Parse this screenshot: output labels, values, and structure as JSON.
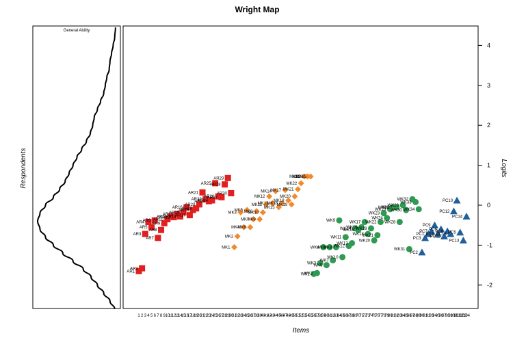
{
  "chart_data": {
    "type": "scatter",
    "title": "Wright Map",
    "xlabel": "Items",
    "ylabel": "Logits",
    "left_ylabel": "Respondents",
    "density_label": "General Ability",
    "ylim": [
      -2.6,
      4.45
    ],
    "yticks": [
      -2,
      -1,
      0,
      1,
      2,
      3,
      4
    ],
    "colors": {
      "AR": "#e02020",
      "MK": "#f08a2c",
      "WK": "#2e9a52",
      "PC": "#1f5f9c"
    },
    "density_profile": [
      [
        -2.6,
        0.02
      ],
      [
        -2.4,
        0.08
      ],
      [
        -2.2,
        0.16
      ],
      [
        -2.0,
        0.24
      ],
      [
        -1.8,
        0.32
      ],
      [
        -1.6,
        0.42
      ],
      [
        -1.4,
        0.55
      ],
      [
        -1.2,
        0.68
      ],
      [
        -1.0,
        0.8
      ],
      [
        -0.8,
        0.9
      ],
      [
        -0.6,
        0.97
      ],
      [
        -0.4,
        1.0
      ],
      [
        -0.2,
        0.97
      ],
      [
        0.0,
        0.9
      ],
      [
        0.2,
        0.8
      ],
      [
        0.4,
        0.72
      ],
      [
        0.6,
        0.65
      ],
      [
        0.8,
        0.6
      ],
      [
        1.0,
        0.55
      ],
      [
        1.2,
        0.5
      ],
      [
        1.4,
        0.44
      ],
      [
        1.6,
        0.38
      ],
      [
        1.8,
        0.33
      ],
      [
        2.0,
        0.3
      ],
      [
        2.2,
        0.28
      ],
      [
        2.4,
        0.24
      ],
      [
        2.6,
        0.2
      ],
      [
        2.8,
        0.16
      ],
      [
        3.0,
        0.14
      ],
      [
        3.2,
        0.12
      ],
      [
        3.4,
        0.09
      ],
      [
        3.6,
        0.08
      ],
      [
        3.8,
        0.06
      ],
      [
        4.0,
        0.04
      ],
      [
        4.2,
        0.02
      ],
      [
        4.45,
        0.01
      ]
    ],
    "x_tick_labels": [
      "1",
      "2",
      "3",
      "4",
      "5",
      "6",
      "7",
      "8",
      "9",
      "10",
      "11",
      "12",
      "13",
      "14",
      "15",
      "16",
      "17",
      "18",
      "19",
      "20",
      "21",
      "22",
      "23",
      "24",
      "25",
      "26",
      "27",
      "28",
      "29",
      "30",
      "31",
      "32",
      "33",
      "34",
      "35",
      "36",
      "37",
      "38",
      "39",
      "40",
      "41",
      "42",
      "43",
      "44",
      "45",
      "46",
      "47",
      "48",
      "49",
      "50",
      "51",
      "52",
      "53",
      "54",
      "55",
      "56",
      "57",
      "58",
      "59",
      "60",
      "61",
      "62",
      "63",
      "64",
      "65",
      "66",
      "67",
      "68",
      "69",
      "70",
      "71",
      "72",
      "73",
      "74",
      "75",
      "76",
      "77",
      "78",
      "79",
      "80",
      "81",
      "82",
      "83",
      "84",
      "85",
      "86",
      "87",
      "88",
      "89",
      "90",
      "91",
      "92",
      "93",
      "94",
      "95",
      "96",
      "97",
      "98",
      "99",
      "100",
      "101",
      "102",
      "103",
      "104"
    ],
    "series": [
      {
        "name": "AR",
        "shape": "square",
        "points": [
          {
            "x": 1,
            "y": -1.65,
            "label": "AR1"
          },
          {
            "x": 2,
            "y": -1.58,
            "label": "AR2"
          },
          {
            "x": 3,
            "y": -0.72,
            "label": "AR3"
          },
          {
            "x": 4,
            "y": -0.42,
            "label": "AR4"
          },
          {
            "x": 5,
            "y": -0.55,
            "label": "AR5"
          },
          {
            "x": 6,
            "y": -0.38,
            "label": "AR6"
          },
          {
            "x": 7,
            "y": -0.82,
            "label": "AR7"
          },
          {
            "x": 8,
            "y": -0.62,
            "label": "AR8"
          },
          {
            "x": 9,
            "y": -0.45,
            "label": "AR9"
          },
          {
            "x": 10,
            "y": -0.35,
            "label": "AR10"
          },
          {
            "x": 11,
            "y": -0.28,
            "label": "AR11"
          },
          {
            "x": 12,
            "y": -0.3,
            "label": "AR12"
          },
          {
            "x": 13,
            "y": -0.22,
            "label": "AR13"
          },
          {
            "x": 14,
            "y": -0.28,
            "label": "AR14"
          },
          {
            "x": 15,
            "y": -0.18,
            "label": "AR15"
          },
          {
            "x": 16,
            "y": -0.05,
            "label": "AR16"
          },
          {
            "x": 17,
            "y": -0.25,
            "label": "AR17"
          },
          {
            "x": 18,
            "y": -0.12,
            "label": "AR18"
          },
          {
            "x": 19,
            "y": -0.08,
            "label": "AR19"
          },
          {
            "x": 20,
            "y": 0.02,
            "label": "AR20"
          },
          {
            "x": 21,
            "y": 0.32,
            "label": "AR21"
          },
          {
            "x": 22,
            "y": 0.15,
            "label": "AR22"
          },
          {
            "x": 23,
            "y": 0.1,
            "label": "AR23"
          },
          {
            "x": 24,
            "y": 0.12,
            "label": "AR24"
          },
          {
            "x": 25,
            "y": 0.55,
            "label": "AR25"
          },
          {
            "x": 26,
            "y": 0.22,
            "label": "AR26"
          },
          {
            "x": 27,
            "y": 0.2,
            "label": "AR27"
          },
          {
            "x": 28,
            "y": 0.52,
            "label": "AR28"
          },
          {
            "x": 29,
            "y": 0.68,
            "label": "AR29"
          },
          {
            "x": 30,
            "y": 0.3,
            "label": "AR30"
          }
        ]
      },
      {
        "name": "MK",
        "shape": "diamond",
        "points": [
          {
            "x": 31,
            "y": -1.05,
            "label": "MK1"
          },
          {
            "x": 32,
            "y": -0.78,
            "label": "MK2"
          },
          {
            "x": 33,
            "y": -0.18,
            "label": "MK3"
          },
          {
            "x": 34,
            "y": -0.55,
            "label": "MK4"
          },
          {
            "x": 35,
            "y": -0.12,
            "label": "MK5"
          },
          {
            "x": 36,
            "y": -0.55,
            "label": "MK6"
          },
          {
            "x": 37,
            "y": -0.35,
            "label": "MK7"
          },
          {
            "x": 38,
            "y": -0.15,
            "label": "MK8"
          },
          {
            "x": 39,
            "y": -0.35,
            "label": "MK9"
          },
          {
            "x": 40,
            "y": -0.18,
            "label": "MK10"
          },
          {
            "x": 41,
            "y": 0.02,
            "label": "MK11"
          },
          {
            "x": 42,
            "y": 0.22,
            "label": "MK12"
          },
          {
            "x": 43,
            "y": 0.05,
            "label": "MK13"
          },
          {
            "x": 44,
            "y": 0.35,
            "label": "MK14"
          },
          {
            "x": 45,
            "y": -0.05,
            "label": "MK15"
          },
          {
            "x": 46,
            "y": 0.05,
            "label": "MK16"
          },
          {
            "x": 47,
            "y": 0.38,
            "label": "MK17"
          },
          {
            "x": 48,
            "y": 0.12,
            "label": "MK18"
          },
          {
            "x": 49,
            "y": 0.02,
            "label": "MK19"
          },
          {
            "x": 50,
            "y": 0.22,
            "label": "MK20"
          },
          {
            "x": 51,
            "y": 0.4,
            "label": "MK21"
          },
          {
            "x": 52,
            "y": 0.55,
            "label": "MK22"
          },
          {
            "x": 53,
            "y": 0.72,
            "label": "MK23"
          },
          {
            "x": 54,
            "y": 0.72,
            "label": "MK24"
          },
          {
            "x": 55,
            "y": 0.72,
            "label": "MK25"
          }
        ]
      },
      {
        "name": "WK",
        "shape": "circle",
        "points": [
          {
            "x": 56,
            "y": -1.72,
            "label": "WK1"
          },
          {
            "x": 57,
            "y": -1.7,
            "label": "WK2"
          },
          {
            "x": 58,
            "y": -1.45,
            "label": "WK3"
          },
          {
            "x": 59,
            "y": -1.05,
            "label": "WK4"
          },
          {
            "x": 60,
            "y": -1.5,
            "label": "WK5"
          },
          {
            "x": 61,
            "y": -1.05,
            "label": "WK6"
          },
          {
            "x": 62,
            "y": -1.38,
            "label": "WK7"
          },
          {
            "x": 63,
            "y": -1.05,
            "label": "WK8"
          },
          {
            "x": 64,
            "y": -0.38,
            "label": "WK9"
          },
          {
            "x": 65,
            "y": -1.3,
            "label": "WK10"
          },
          {
            "x": 66,
            "y": -0.8,
            "label": "WK11"
          },
          {
            "x": 67,
            "y": -1.02,
            "label": "WK12"
          },
          {
            "x": 68,
            "y": -0.95,
            "label": "WK13"
          },
          {
            "x": 69,
            "y": -0.58,
            "label": "WK14"
          },
          {
            "x": 70,
            "y": -0.62,
            "label": "WK15"
          },
          {
            "x": 71,
            "y": -0.55,
            "label": "WK16"
          },
          {
            "x": 72,
            "y": -0.42,
            "label": "WK17"
          },
          {
            "x": 73,
            "y": -0.72,
            "label": "WK18"
          },
          {
            "x": 74,
            "y": -0.58,
            "label": "WK19"
          },
          {
            "x": 75,
            "y": -0.88,
            "label": "WK20"
          },
          {
            "x": 76,
            "y": -0.75,
            "label": "WK21"
          },
          {
            "x": 77,
            "y": -0.42,
            "label": "WK22"
          },
          {
            "x": 78,
            "y": -0.2,
            "label": "WK23"
          },
          {
            "x": 79,
            "y": -0.32,
            "label": "WK24"
          },
          {
            "x": 80,
            "y": -0.1,
            "label": "WK25"
          },
          {
            "x": 81,
            "y": -0.05,
            "label": "WK26"
          },
          {
            "x": 82,
            "y": -0.05,
            "label": "WK27"
          },
          {
            "x": 83,
            "y": -0.42,
            "label": "WK28"
          },
          {
            "x": 84,
            "y": 0.0,
            "label": "WK29"
          },
          {
            "x": 85,
            "y": -0.12,
            "label": "WK30"
          },
          {
            "x": 86,
            "y": -1.1,
            "label": "WK31"
          },
          {
            "x": 87,
            "y": 0.15,
            "label": "WK32"
          },
          {
            "x": 88,
            "y": 0.08,
            "label": "WK33"
          },
          {
            "x": 89,
            "y": -0.1,
            "label": "WK34"
          }
        ]
      },
      {
        "name": "PC",
        "shape": "triangle",
        "points": [
          {
            "x": 90,
            "y": -1.18,
            "label": "PC2"
          },
          {
            "x": 91,
            "y": -0.82,
            "label": "PC3"
          },
          {
            "x": 92,
            "y": -0.72,
            "label": "PC1"
          },
          {
            "x": 93,
            "y": -0.65,
            "label": "PC7"
          },
          {
            "x": 94,
            "y": -0.5,
            "label": "PC9"
          },
          {
            "x": 95,
            "y": -0.72,
            "label": "PC4"
          },
          {
            "x": 96,
            "y": -0.6,
            "label": "PC6"
          },
          {
            "x": 97,
            "y": -0.78,
            "label": "PC11"
          },
          {
            "x": 98,
            "y": -0.65,
            "label": "PC8"
          },
          {
            "x": 99,
            "y": -0.72,
            "label": "PC15"
          },
          {
            "x": 100,
            "y": -0.15,
            "label": "PC12"
          },
          {
            "x": 101,
            "y": 0.12,
            "label": "PC10"
          },
          {
            "x": 102,
            "y": -0.68,
            "label": "PC5"
          },
          {
            "x": 103,
            "y": -0.88,
            "label": "PC13"
          },
          {
            "x": 104,
            "y": -0.28,
            "label": "PC14"
          }
        ]
      }
    ]
  }
}
